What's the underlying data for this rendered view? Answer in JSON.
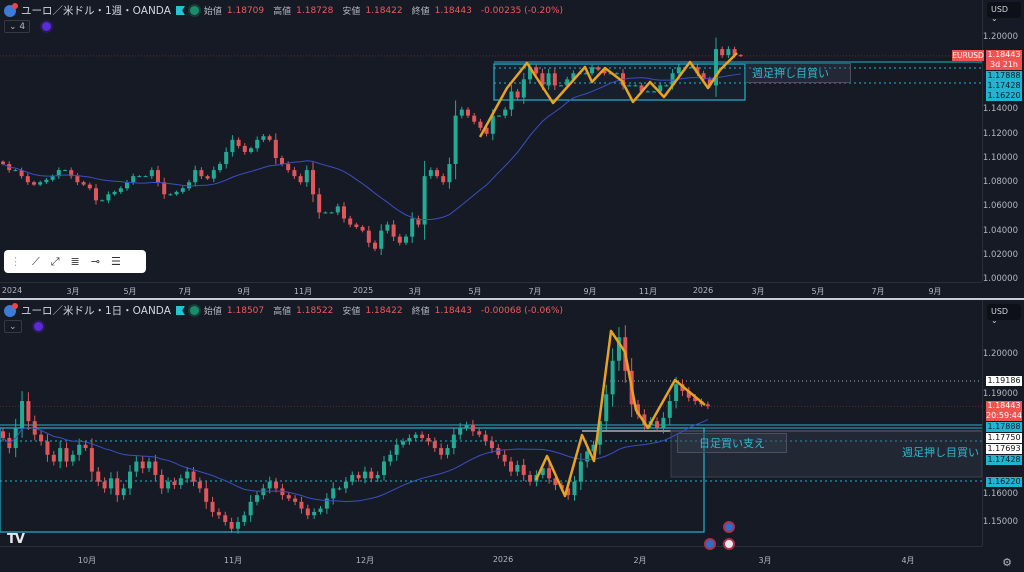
{
  "top": {
    "symbol": "ユーロ／米ドル・1週・OANDA",
    "open_label": "始値",
    "open": "1.18709",
    "high_label": "高値",
    "high": "1.18728",
    "low_label": "安値",
    "low": "1.18422",
    "close_label": "終値",
    "close": "1.18443",
    "change": "-0.00235 (-0.20%)",
    "indicator_count": "⌄ 4",
    "currency": "USD",
    "y_ticks": [
      "1.20000",
      "1.14000",
      "1.12000",
      "1.10000",
      "1.08000",
      "1.06000",
      "1.04000",
      "1.02000",
      "1.00000"
    ],
    "x_ticks": [
      "2024",
      "3月",
      "5月",
      "7月",
      "9月",
      "11月",
      "2025",
      "3月",
      "5月",
      "7月",
      "9月",
      "11月",
      "2026",
      "3月",
      "5月",
      "7月",
      "9月"
    ],
    "symbol_tag": "EURUSD",
    "last_price": "1.18443",
    "countdown": "3d 21h",
    "levels": [
      "1.17888",
      "1.17428",
      "1.16220"
    ],
    "note": "週足押し目買い"
  },
  "bottom": {
    "symbol": "ユーロ／米ドル・1日・OANDA",
    "open_label": "始値",
    "open": "1.18507",
    "high_label": "高値",
    "high": "1.18522",
    "low_label": "安値",
    "low": "1.18422",
    "close_label": "終値",
    "close": "1.18443",
    "change": "-0.00068 (-0.06%)",
    "indicator_count": "⌄",
    "currency": "USD",
    "y_ticks": [
      "1.20000",
      "1.19000",
      "1.16000",
      "1.15000"
    ],
    "x_ticks": [
      "10月",
      "11月",
      "12月",
      "2026",
      "2月",
      "3月",
      "4月"
    ],
    "last_price": "1.18443",
    "countdown": "20:59:44",
    "levels": {
      "resistance": "1.19186",
      "l1": "1.17888",
      "l2": "1.17750",
      "l3": "1.17693",
      "l4": "1.17428",
      "l5": "1.16220"
    },
    "note_daily": "日足買い支え",
    "note_weekly": "週足押し目買い"
  },
  "toolbar": {
    "icons": [
      "trend-line",
      "ray",
      "fib",
      "horizontal-ray",
      "parallel-channel"
    ]
  },
  "logo": "TV",
  "colors": {
    "up": "#22ab94",
    "down": "#e0575b",
    "ma": "#3b4fc4",
    "zigzag": "#e8a320",
    "level": "#1fb4cf",
    "bg": "#161a25"
  },
  "chart_data": [
    {
      "type": "candlestick",
      "timeframe": "weekly",
      "start": "2024-01",
      "close": [
        1.095,
        1.09,
        1.09,
        1.085,
        1.08,
        1.078,
        1.08,
        1.082,
        1.085,
        1.09,
        1.09,
        1.085,
        1.08,
        1.078,
        1.075,
        1.065,
        1.065,
        1.07,
        1.072,
        1.075,
        1.08,
        1.085,
        1.085,
        1.085,
        1.09,
        1.08,
        1.07,
        1.07,
        1.072,
        1.075,
        1.08,
        1.09,
        1.085,
        1.083,
        1.09,
        1.095,
        1.105,
        1.115,
        1.11,
        1.105,
        1.108,
        1.115,
        1.118,
        1.115,
        1.1,
        1.095,
        1.09,
        1.085,
        1.08,
        1.09,
        1.07,
        1.055,
        1.055,
        1.055,
        1.06,
        1.05,
        1.045,
        1.043,
        1.04,
        1.03,
        1.025,
        1.04,
        1.045,
        1.035,
        1.03,
        1.035,
        1.05,
        1.045,
        1.085,
        1.09,
        1.085,
        1.08,
        1.095,
        1.135,
        1.14,
        1.135,
        1.13,
        1.125,
        1.12,
        1.135,
        1.135,
        1.14,
        1.155,
        1.15,
        1.165,
        1.175,
        1.17,
        1.16,
        1.17,
        1.16,
        1.16,
        1.165,
        1.17,
        1.17,
        1.17,
        1.175,
        1.173,
        1.17,
        1.17,
        1.17,
        1.16,
        1.16,
        1.16,
        1.155,
        1.155,
        1.155,
        1.16,
        1.16,
        1.17,
        1.175,
        1.175,
        1.175,
        1.17,
        1.165,
        1.16,
        1.19,
        1.185,
        1.19,
        1.185,
        1.18443
      ],
      "ylim": [
        1.0,
        1.2
      ]
    },
    {
      "type": "candlestick",
      "timeframe": "daily",
      "start": "2025-09",
      "close": [
        1.175,
        1.172,
        1.178,
        1.186,
        1.18,
        1.176,
        1.174,
        1.17,
        1.168,
        1.172,
        1.168,
        1.17,
        1.173,
        1.172,
        1.165,
        1.162,
        1.16,
        1.163,
        1.158,
        1.16,
        1.165,
        1.168,
        1.166,
        1.168,
        1.164,
        1.16,
        1.162,
        1.161,
        1.163,
        1.165,
        1.162,
        1.16,
        1.156,
        1.153,
        1.152,
        1.15,
        1.148,
        1.15,
        1.152,
        1.156,
        1.158,
        1.16,
        1.162,
        1.16,
        1.158,
        1.157,
        1.156,
        1.154,
        1.152,
        1.153,
        1.154,
        1.157,
        1.16,
        1.16,
        1.162,
        1.164,
        1.163,
        1.165,
        1.163,
        1.164,
        1.168,
        1.17,
        1.173,
        1.174,
        1.175,
        1.176,
        1.175,
        1.174,
        1.172,
        1.17,
        1.172,
        1.176,
        1.178,
        1.179,
        1.177,
        1.176,
        1.174,
        1.172,
        1.17,
        1.168,
        1.165,
        1.167,
        1.164,
        1.162,
        1.164,
        1.166,
        1.163,
        1.161,
        1.16,
        1.158,
        1.162,
        1.168,
        1.171,
        1.173,
        1.18,
        1.188,
        1.198,
        1.205,
        1.195,
        1.185,
        1.182,
        1.179,
        1.18,
        1.178,
        1.181,
        1.186,
        1.191,
        1.189,
        1.187,
        1.186,
        1.185,
        1.18443
      ],
      "ylim": [
        1.145,
        1.215
      ]
    }
  ]
}
